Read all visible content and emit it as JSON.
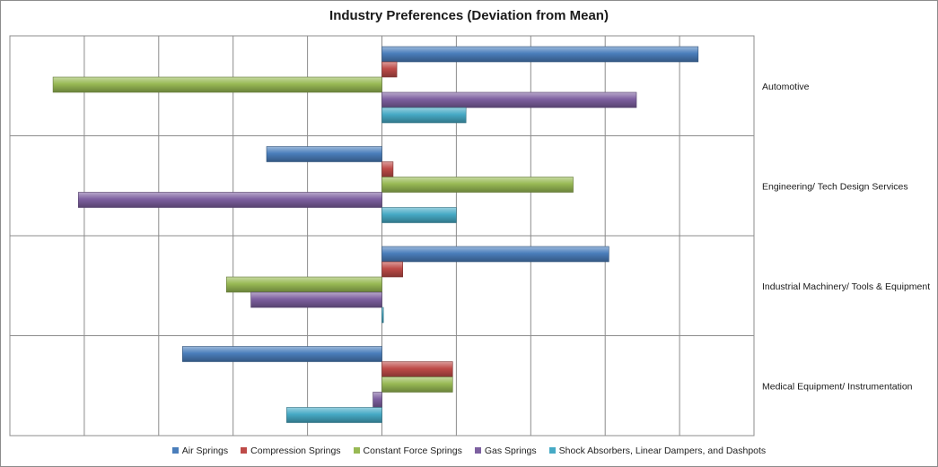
{
  "chart_data": {
    "type": "bar",
    "orientation": "horizontal",
    "title": "Industry Preferences (Deviation from Mean)",
    "xlabel": "",
    "ylabel": "",
    "xlim": [
      -5,
      5
    ],
    "grid": true,
    "legend_position": "bottom",
    "categories": [
      "Automotive",
      "Engineering/ Tech Design Services",
      "Industrial Machinery/ Tools & Equipment",
      "Medical Equipment/ Instrumentation"
    ],
    "series": [
      {
        "name": "Air Springs",
        "color": "#4a7ebb",
        "values": [
          4.25,
          -1.55,
          3.05,
          -2.68
        ]
      },
      {
        "name": "Compression Springs",
        "color": "#be4b48",
        "values": [
          0.2,
          0.15,
          0.28,
          0.95
        ]
      },
      {
        "name": "Constant Force Springs",
        "color": "#98b954",
        "values": [
          -4.42,
          2.57,
          -2.09,
          0.95
        ]
      },
      {
        "name": "Gas Springs",
        "color": "#7d60a0",
        "values": [
          3.42,
          -4.08,
          -1.76,
          -0.12
        ]
      },
      {
        "name": "Shock Absorbers, Linear Dampers, and Dashpots",
        "color": "#46aac5",
        "values": [
          1.13,
          1.0,
          0.02,
          -1.28
        ]
      }
    ]
  }
}
